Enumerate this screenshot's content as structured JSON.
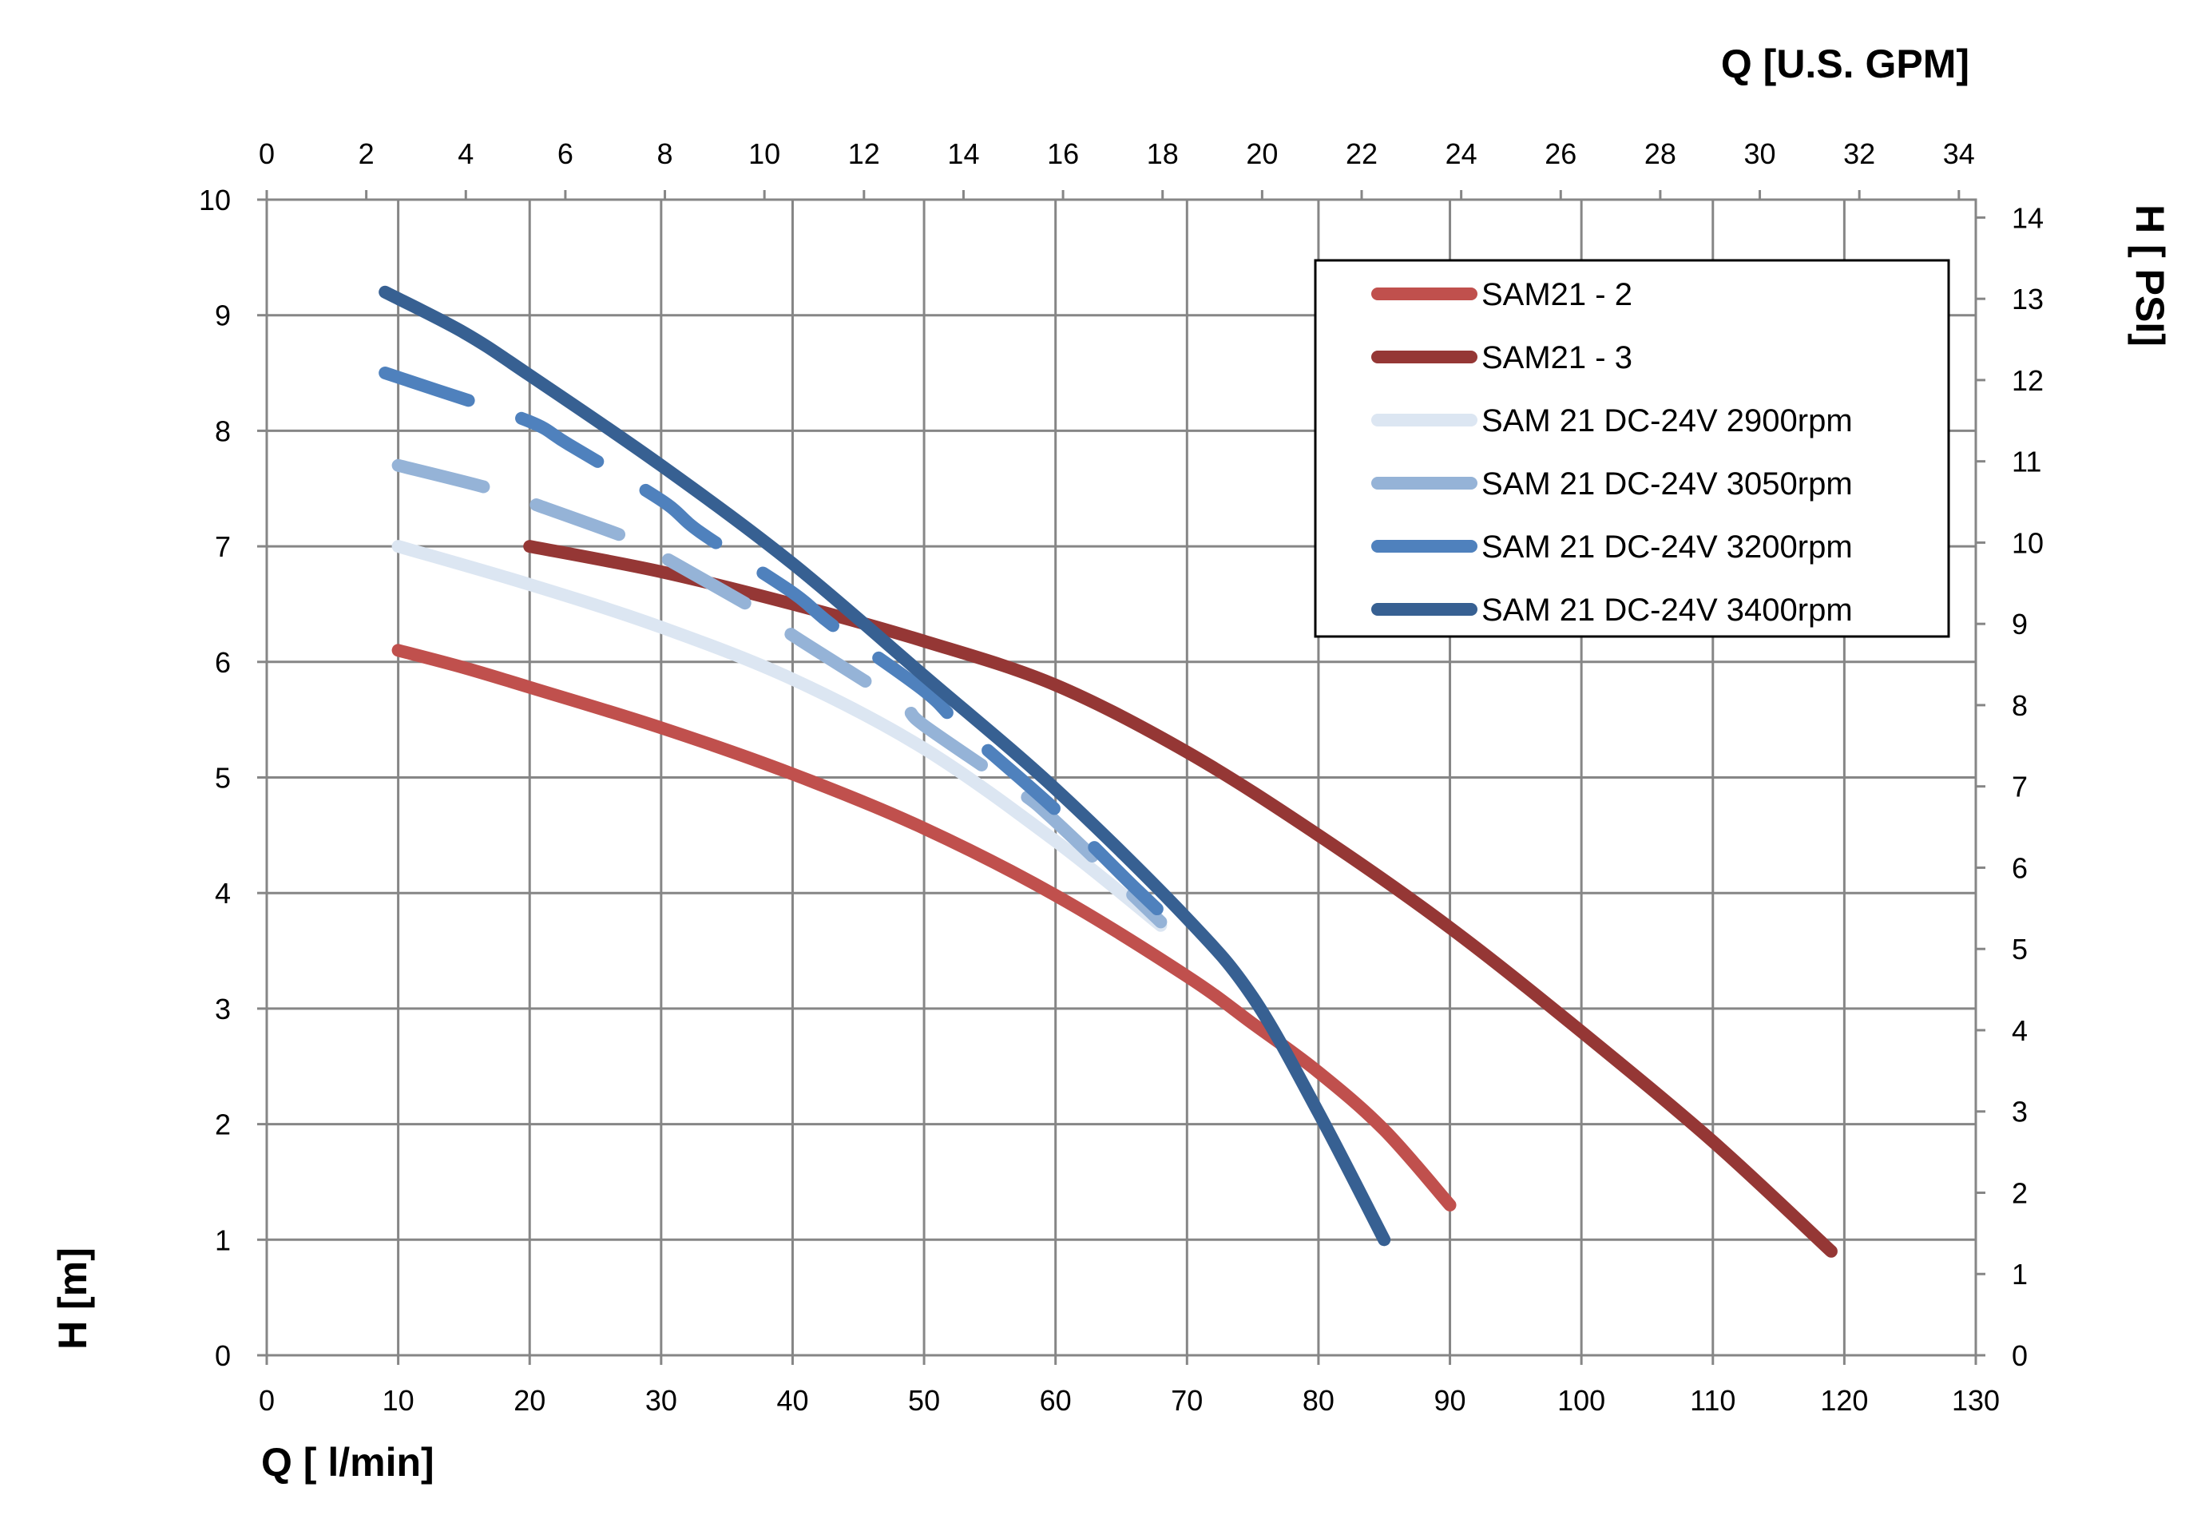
{
  "chart_data": {
    "type": "line",
    "xlabel": "Q [ l/min]",
    "ylabel": "H [m]",
    "x2label": "Q  [U.S. GPM]",
    "y2label": "H [ PSI]",
    "xlim": [
      0,
      130
    ],
    "ylim": [
      0,
      10
    ],
    "x2lim": [
      0,
      34.34
    ],
    "y2lim": [
      0,
      14.22
    ],
    "xticks": [
      "0",
      "10",
      "20",
      "30",
      "40",
      "50",
      "60",
      "70",
      "80",
      "90",
      "100",
      "110",
      "120",
      "130"
    ],
    "yticks": [
      "0",
      "1",
      "2",
      "3",
      "4",
      "5",
      "6",
      "7",
      "8",
      "9",
      "10"
    ],
    "x2ticks": [
      "0",
      "2",
      "4",
      "6",
      "8",
      "10",
      "12",
      "14",
      "16",
      "18",
      "20",
      "22",
      "24",
      "26",
      "28",
      "30",
      "32",
      "34"
    ],
    "y2ticks": [
      "0",
      "1",
      "2",
      "3",
      "4",
      "5",
      "6",
      "7",
      "8",
      "9",
      "10",
      "11",
      "12",
      "13",
      "14"
    ],
    "grid": true,
    "legend_position": "top-right",
    "series": [
      {
        "name": "SAM21 - 2",
        "color": "#C0504D",
        "dash": "solid",
        "x": [
          10,
          15,
          20,
          30,
          40,
          50,
          60,
          70,
          75,
          80,
          85,
          90
        ],
        "y": [
          6.1,
          5.95,
          5.78,
          5.43,
          5.03,
          4.56,
          3.98,
          3.28,
          2.87,
          2.45,
          1.95,
          1.3
        ]
      },
      {
        "name": "SAM21 - 3",
        "color": "#953735",
        "dash": "solid",
        "x": [
          20,
          30,
          40,
          50,
          60,
          70,
          80,
          90,
          100,
          110,
          119
        ],
        "y": [
          7.0,
          6.78,
          6.5,
          6.18,
          5.8,
          5.22,
          4.5,
          3.7,
          2.8,
          1.85,
          0.9
        ]
      },
      {
        "name": "SAM 21 DC-24V 2900rpm",
        "color": "#DCE6F2",
        "dash": "solid",
        "x": [
          10,
          20,
          30,
          40,
          50,
          60,
          68
        ],
        "y": [
          7.0,
          6.67,
          6.3,
          5.85,
          5.25,
          4.45,
          3.72
        ]
      },
      {
        "name": "SAM 21 DC-24V 3050rpm",
        "color": "#95B3D7",
        "dash": "long-dash",
        "x": [
          10,
          17,
          20,
          28,
          30,
          38,
          40,
          48,
          50,
          57,
          60,
          68
        ],
        "y": [
          7.7,
          7.5,
          7.38,
          7.05,
          6.92,
          6.4,
          6.23,
          5.65,
          5.45,
          4.9,
          4.62,
          3.75
        ]
      },
      {
        "name": "SAM 21 DC-24V 3200rpm",
        "color": "#4F81BD",
        "dash": "long-dash",
        "x": [
          9,
          13,
          20,
          23,
          30,
          33,
          40,
          43,
          50,
          53,
          60,
          66,
          70
        ],
        "y": [
          8.5,
          8.35,
          8.08,
          7.88,
          7.4,
          7.12,
          6.6,
          6.32,
          5.75,
          5.42,
          4.72,
          4.05,
          3.62
        ]
      },
      {
        "name": "SAM 21 DC-24V 3400rpm",
        "color": "#376092",
        "dash": "solid",
        "x": [
          9,
          15,
          20,
          30,
          40,
          50,
          60,
          70,
          75,
          80,
          85
        ],
        "y": [
          9.2,
          8.85,
          8.48,
          7.7,
          6.85,
          5.88,
          4.9,
          3.78,
          3.1,
          2.1,
          1.0
        ]
      }
    ]
  }
}
